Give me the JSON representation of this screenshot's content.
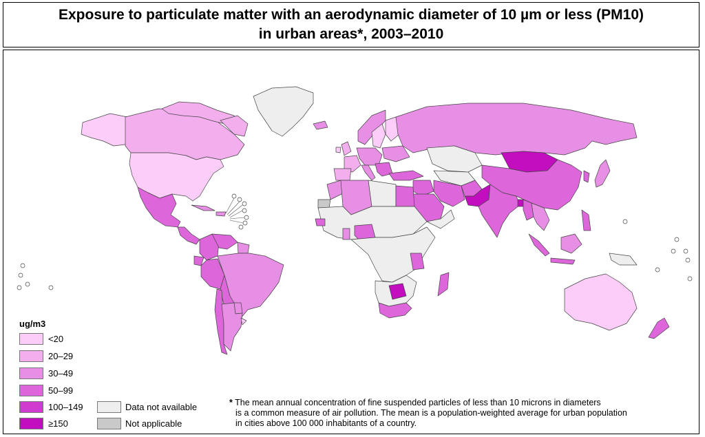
{
  "title": {
    "line1": "Exposure to particulate matter with an aerodynamic diameter of 10 µm or less (PM10)",
    "line2": "in urban areas*, 2003–2010"
  },
  "legend": {
    "unit": "ug/m3",
    "classes": [
      {
        "label": "<20",
        "color": "#fccdf8"
      },
      {
        "label": "20–29",
        "color": "#f3aeee"
      },
      {
        "label": "30–49",
        "color": "#e78fe4"
      },
      {
        "label": "50–99",
        "color": "#dd67da"
      },
      {
        "label": "100–149",
        "color": "#d03ccd"
      },
      {
        "label": "≥150",
        "color": "#c20ebf"
      }
    ],
    "other": [
      {
        "label": "Data not available",
        "color": "#eeeeee"
      },
      {
        "label": "Not applicable",
        "color": "#c9c9c9"
      }
    ]
  },
  "footnote": {
    "star": "*",
    "lines": [
      "The mean annual concentration of fine suspended particles of less than 10 microns in diameters",
      "is a common measure of air pollution. The mean is a population-weighted average for urban population",
      "in cities above 100 000 inhabitants of a country."
    ]
  },
  "colors": {
    "border": "#555555",
    "coast": "#333333"
  }
}
